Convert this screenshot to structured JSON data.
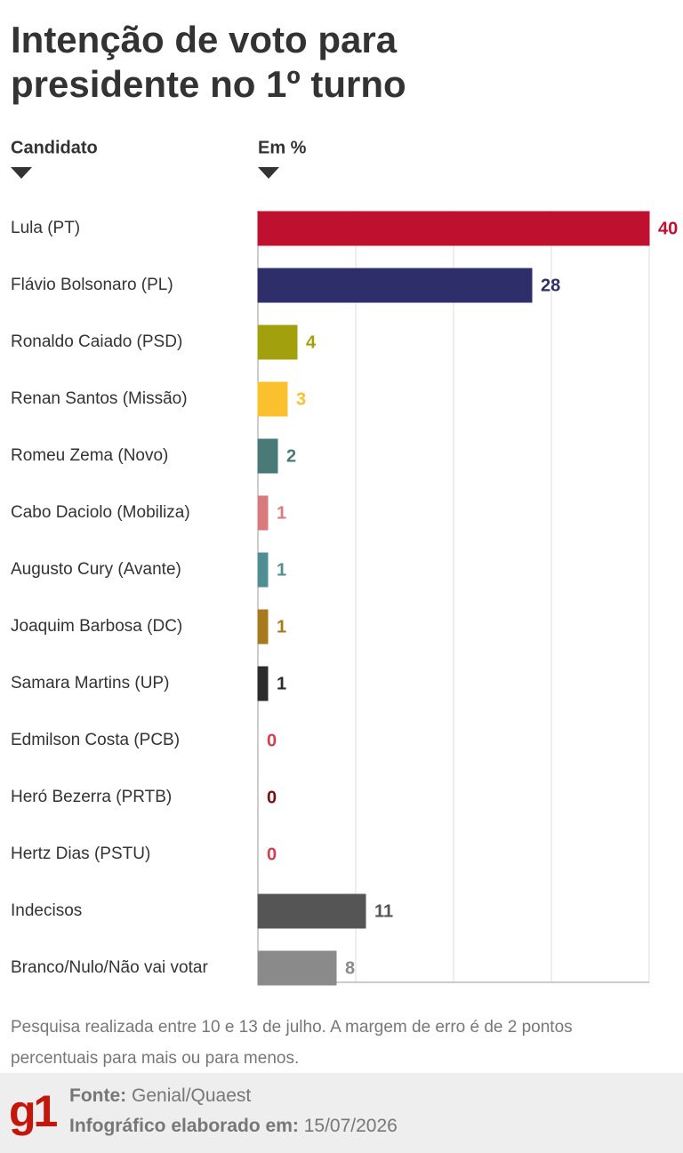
{
  "chart_data": {
    "type": "bar",
    "orientation": "horizontal",
    "title": [
      "Intenção de voto para",
      "presidente no 1º turno"
    ],
    "category_header": "Candidato",
    "value_header": "Em %",
    "categories": [
      "Lula (PT)",
      "Flávio Bolsonaro (PL)",
      "Ronaldo Caiado (PSD)",
      "Renan Santos (Missão)",
      "Romeu Zema (Novo)",
      "Cabo Daciolo (Mobiliza)",
      "Augusto Cury (Avante)",
      "Joaquim Barbosa (DC)",
      "Samara Martins (UP)",
      "Edmilson Costa (PCB)",
      "Heró Bezerra (PRTB)",
      "Hertz Dias (PSTU)",
      "Indecisos",
      "Branco/Nulo/Não vai votar"
    ],
    "values": [
      40,
      28,
      4,
      3,
      2,
      1,
      1,
      1,
      1,
      0,
      0,
      0,
      11,
      8
    ],
    "colors": [
      "#c0102f",
      "#2e2e6b",
      "#a3a00e",
      "#fbc02d",
      "#4a7a78",
      "#d97a7e",
      "#4f8f94",
      "#a87a1e",
      "#2b2b2b",
      "#d04050",
      "#7a1010",
      "#d04050",
      "#555555",
      "#8a8a8a"
    ],
    "xlim": [
      0,
      40
    ],
    "xticks": [
      0,
      10,
      20,
      30,
      40
    ],
    "grid": true,
    "note": "Pesquisa realizada entre 10 e 13 de julho. A margem de erro é de 2 pontos percentuais para mais ou para menos.",
    "logo": "g1",
    "source_label": "Fonte:",
    "source": "Genial/Quaest",
    "date_label": "Infográfico elaborado em:",
    "date": "15/07/2026"
  }
}
